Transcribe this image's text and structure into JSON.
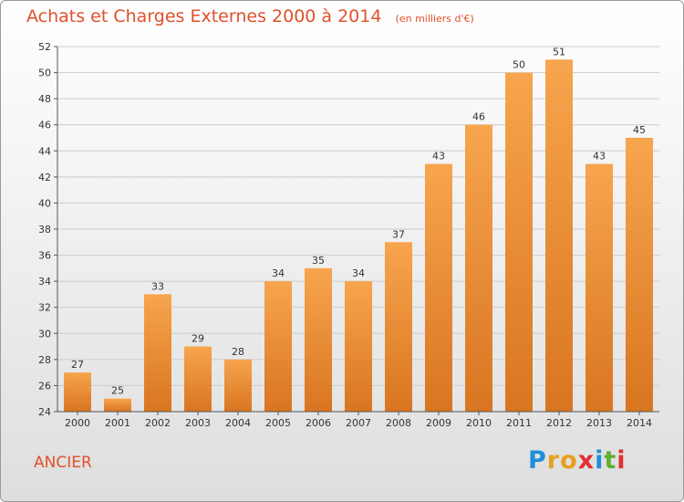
{
  "title": "Achats et Charges Externes 2000 à 2014",
  "subtitle": "(en milliers d'€)",
  "commune": "ANCIER",
  "logo": {
    "letters": [
      "P",
      "r",
      "o",
      "x",
      "i",
      "t",
      "i"
    ],
    "colors": [
      "#1d8fd8",
      "#e8a020",
      "#e8a020",
      "#e03030",
      "#1d8fd8",
      "#60b030",
      "#e03030"
    ]
  },
  "colors": {
    "title": "#e0502a",
    "bar_top": "#f7a54e",
    "bar_bottom": "#d97520",
    "grid": "#cccccc"
  },
  "chart_data": {
    "type": "bar",
    "categories": [
      "2000",
      "2001",
      "2002",
      "2003",
      "2004",
      "2005",
      "2006",
      "2007",
      "2008",
      "2009",
      "2010",
      "2011",
      "2012",
      "2013",
      "2014"
    ],
    "values": [
      27,
      25,
      33,
      29,
      28,
      34,
      35,
      34,
      37,
      43,
      46,
      50,
      51,
      43,
      45
    ],
    "xlabel": "",
    "ylabel": "",
    "ylim": [
      24,
      52
    ],
    "yticks": [
      24,
      26,
      28,
      30,
      32,
      34,
      36,
      38,
      40,
      42,
      44,
      46,
      48,
      50,
      52
    ],
    "grid": true,
    "data_labels": true
  }
}
